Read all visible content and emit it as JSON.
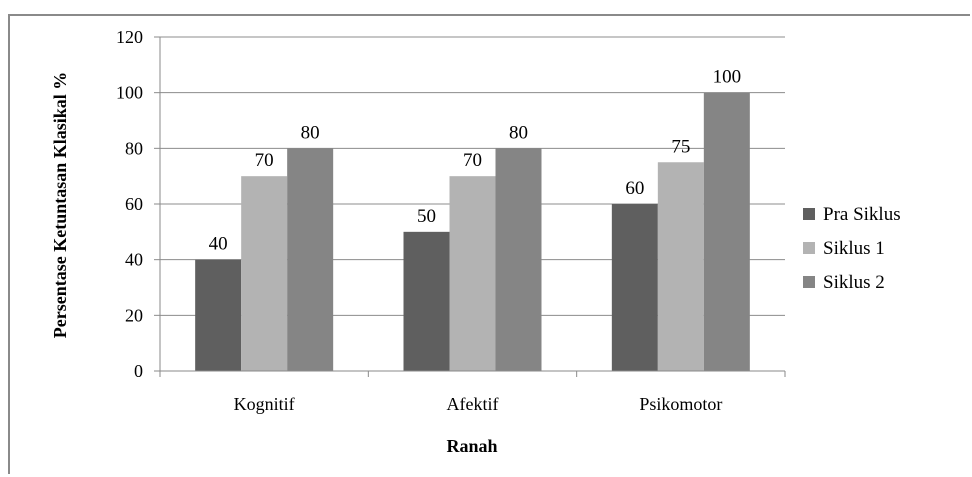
{
  "chart_data": {
    "type": "bar",
    "title": "",
    "xlabel": "Ranah",
    "ylabel": "Persentase Ketuntasan Klasikal %",
    "categories": [
      "Kognitif",
      "Afektif",
      "Psikomotor"
    ],
    "series": [
      {
        "name": "Pra Siklus",
        "values": [
          40,
          50,
          60
        ],
        "labels": [
          "40",
          "50",
          "60"
        ],
        "color": "#5f5f5f"
      },
      {
        "name": "Siklus 1",
        "values": [
          70,
          70,
          75
        ],
        "labels": [
          "70",
          "70",
          "75"
        ],
        "color": "#b3b3b3"
      },
      {
        "name": "Siklus 2",
        "values": [
          80,
          80,
          100
        ],
        "labels": [
          "80",
          "80",
          "100"
        ],
        "color": "#858585"
      }
    ],
    "ylim": [
      0,
      120
    ],
    "yticks": [
      "0",
      "20",
      "40",
      "60",
      "80",
      "100",
      "120"
    ],
    "grid": true,
    "legend_position": "right"
  }
}
